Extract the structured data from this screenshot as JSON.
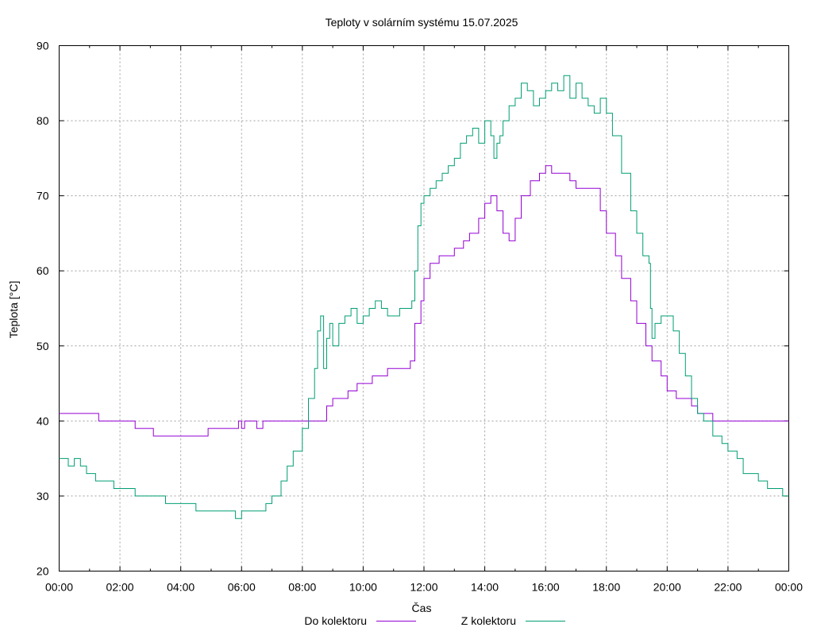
{
  "chart_data": {
    "type": "line",
    "title": "Teploty v solárním systému 15.07.2025",
    "xlabel": "Čas",
    "ylabel": "Teplota [°C]",
    "xlim": [
      0,
      24
    ],
    "ylim": [
      20,
      90
    ],
    "grid": true,
    "legend_position": "bottom",
    "x_tick_labels": [
      "00:00",
      "02:00",
      "04:00",
      "06:00",
      "08:00",
      "10:00",
      "12:00",
      "14:00",
      "16:00",
      "18:00",
      "20:00",
      "22:00",
      "00:00"
    ],
    "x_tick_values": [
      0,
      2,
      4,
      6,
      8,
      10,
      12,
      14,
      16,
      18,
      20,
      22,
      24
    ],
    "y_tick_labels": [
      "20",
      "30",
      "40",
      "50",
      "60",
      "70",
      "80",
      "90"
    ],
    "y_tick_values": [
      20,
      30,
      40,
      50,
      60,
      70,
      80,
      90
    ],
    "series": [
      {
        "name": "Do kolektoru",
        "color": "#9400d3",
        "x": [
          0,
          1.2,
          1.3,
          2.4,
          2.5,
          3.0,
          3.1,
          4.8,
          4.9,
          5.8,
          5.9,
          6.0,
          6.1,
          6.5,
          6.7,
          7.0,
          7.5,
          7.9,
          8.0,
          8.3,
          8.4,
          8.6,
          8.8,
          9.0,
          9.3,
          9.5,
          9.8,
          10.0,
          10.3,
          10.5,
          10.8,
          11.0,
          11.3,
          11.5,
          11.55,
          11.7,
          11.9,
          12.0,
          12.2,
          12.5,
          12.7,
          13.0,
          13.3,
          13.5,
          13.8,
          14.0,
          14.2,
          14.4,
          14.6,
          14.8,
          15.0,
          15.2,
          15.5,
          15.8,
          16.0,
          16.2,
          16.5,
          16.8,
          17.0,
          17.3,
          17.5,
          17.8,
          18.0,
          18.3,
          18.5,
          18.8,
          19.0,
          19.3,
          19.5,
          19.8,
          20.0,
          20.3,
          20.5,
          20.8,
          21.0,
          21.3,
          21.5,
          21.8,
          22.0,
          22.3,
          22.5,
          23.0,
          23.5,
          23.9,
          24.0
        ],
        "y": [
          41,
          41,
          40,
          40,
          39,
          39,
          38,
          38,
          39,
          39,
          40,
          39,
          40,
          39,
          40,
          40,
          40,
          40,
          40,
          40,
          40,
          40,
          42,
          43,
          43,
          44,
          45,
          45,
          46,
          46,
          47,
          47,
          47,
          47,
          48,
          53,
          56,
          59,
          61,
          62,
          62,
          63,
          64,
          65,
          67,
          69,
          70,
          68,
          65,
          64,
          67,
          70,
          72,
          73,
          74,
          73,
          73,
          72,
          71,
          71,
          71,
          68,
          65,
          62,
          59,
          56,
          53,
          50,
          48,
          46,
          44,
          43,
          43,
          42,
          41,
          41,
          40,
          40,
          40,
          40,
          40,
          40,
          40,
          40,
          40
        ]
      },
      {
        "name": "Z kolektoru",
        "color": "#009e73",
        "x": [
          0,
          0.2,
          0.3,
          0.5,
          0.7,
          0.9,
          1.0,
          1.2,
          1.5,
          1.8,
          2.0,
          2.5,
          3.0,
          3.5,
          4.0,
          4.3,
          4.5,
          5.0,
          5.5,
          5.7,
          5.8,
          6.0,
          6.3,
          6.5,
          6.8,
          7.0,
          7.3,
          7.5,
          7.7,
          8.0,
          8.2,
          8.4,
          8.5,
          8.6,
          8.7,
          8.8,
          8.9,
          9.0,
          9.2,
          9.4,
          9.6,
          9.8,
          10.0,
          10.2,
          10.4,
          10.6,
          10.8,
          11.0,
          11.2,
          11.4,
          11.6,
          11.7,
          11.8,
          11.9,
          12.0,
          12.2,
          12.4,
          12.6,
          12.8,
          13.0,
          13.2,
          13.4,
          13.6,
          13.8,
          14.0,
          14.2,
          14.3,
          14.4,
          14.5,
          14.6,
          14.8,
          15.0,
          15.2,
          15.4,
          15.6,
          15.8,
          16.0,
          16.2,
          16.4,
          16.6,
          16.8,
          17.0,
          17.2,
          17.4,
          17.6,
          17.8,
          18.0,
          18.2,
          18.5,
          18.8,
          19.0,
          19.2,
          19.4,
          19.45,
          19.5,
          19.6,
          19.8,
          20.0,
          20.2,
          20.4,
          20.6,
          20.8,
          21.0,
          21.2,
          21.5,
          21.8,
          22.0,
          22.3,
          22.5,
          22.8,
          23.0,
          23.3,
          23.5,
          23.8,
          24.0
        ],
        "y": [
          35,
          35,
          34,
          35,
          34,
          33,
          33,
          32,
          32,
          31,
          31,
          30,
          30,
          29,
          29,
          29,
          28,
          28,
          28,
          28,
          27,
          28,
          28,
          28,
          29,
          30,
          32,
          34,
          36,
          39,
          43,
          47,
          52,
          54,
          47,
          51,
          53,
          50,
          53,
          54,
          55,
          53,
          54,
          55,
          56,
          55,
          54,
          54,
          55,
          55,
          56,
          60,
          66,
          69,
          70,
          71,
          72,
          73,
          74,
          75,
          77,
          78,
          79,
          77,
          80,
          78,
          75,
          77,
          78,
          80,
          82,
          83,
          85,
          84,
          82,
          83,
          84,
          85,
          84,
          86,
          83,
          85,
          83,
          82,
          81,
          83,
          81,
          78,
          73,
          68,
          65,
          62,
          61,
          55,
          51,
          53,
          54,
          54,
          52,
          49,
          46,
          43,
          41,
          40,
          38,
          37,
          36,
          35,
          33,
          33,
          32,
          31,
          31,
          30,
          30
        ]
      }
    ]
  }
}
